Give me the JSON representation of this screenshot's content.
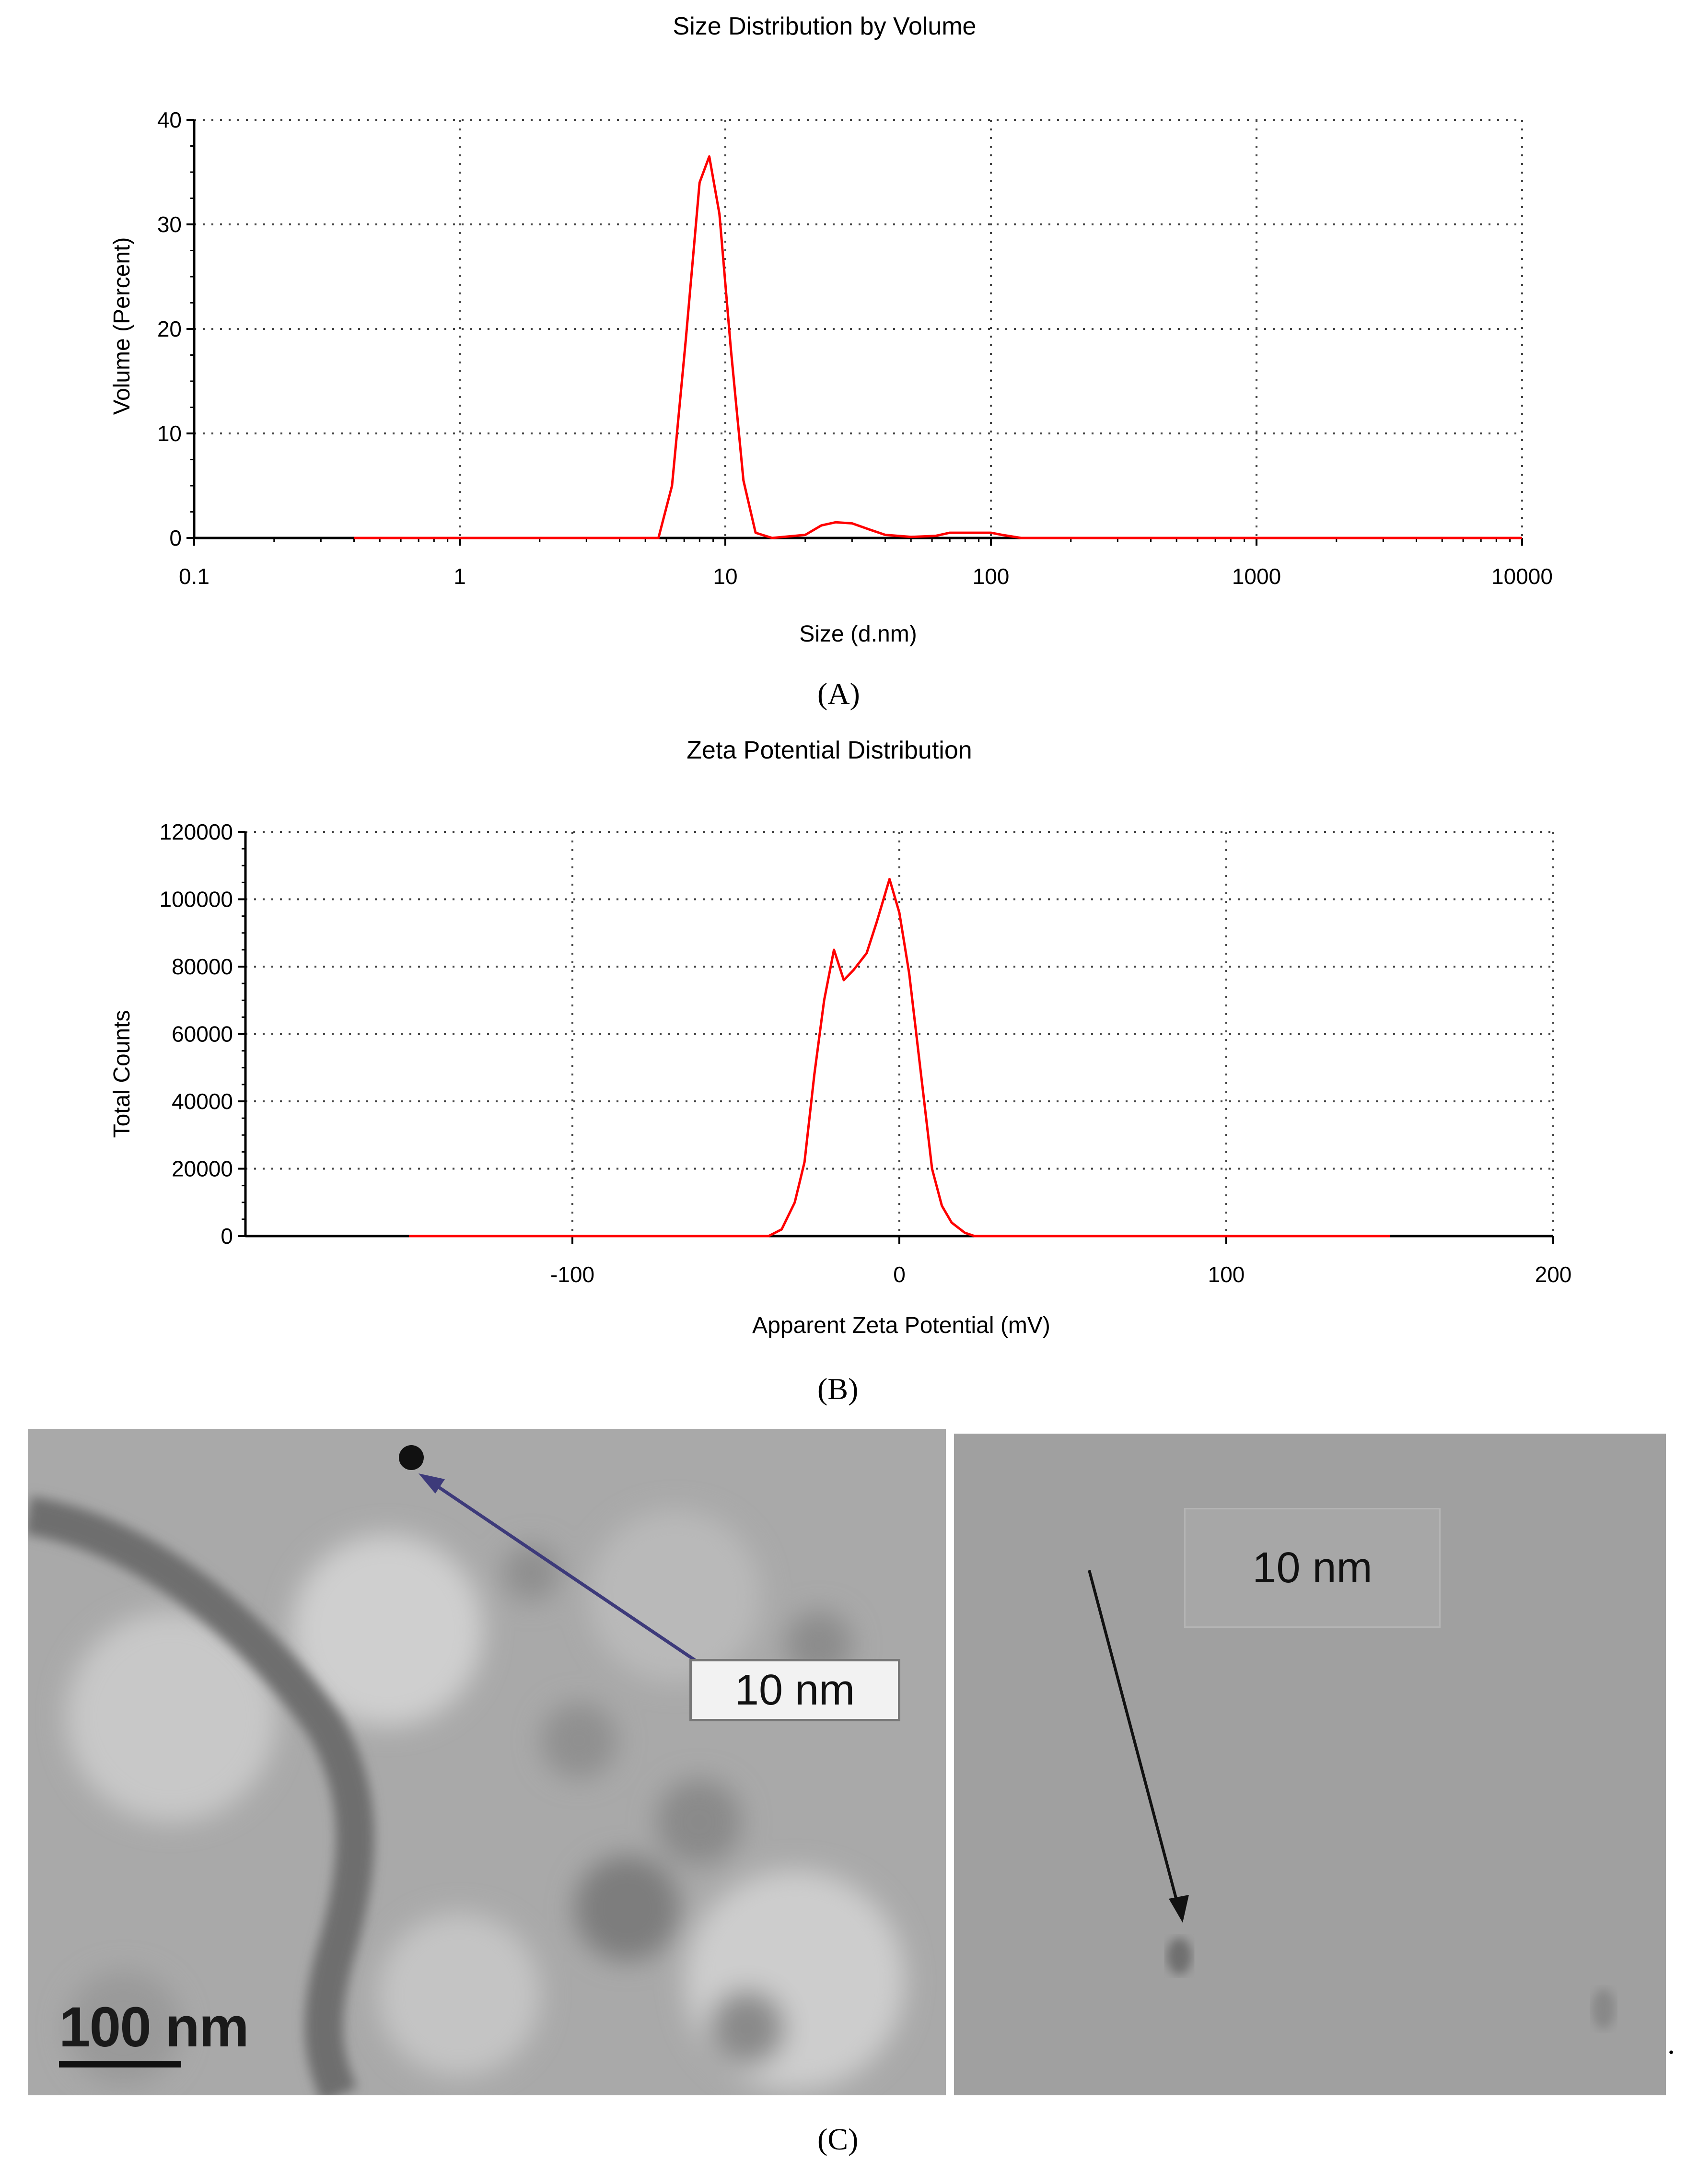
{
  "chart_data": [
    {
      "type": "line",
      "title": "Size Distribution by Volume",
      "xlabel": "Size (d.nm)",
      "ylabel": "Volume (Percent)",
      "x_scale": "log",
      "xlim": [
        0.1,
        10000
      ],
      "ylim": [
        0,
        40
      ],
      "x_ticks": [
        "0.1",
        "1",
        "10",
        "100",
        "1000",
        "10000"
      ],
      "y_ticks": [
        "0",
        "10",
        "20",
        "30",
        "40"
      ],
      "grid": true,
      "series": [
        {
          "color": "#ff0000",
          "x": [
            0.4,
            1,
            2,
            4,
            5.6,
            6.3,
            7.1,
            8,
            8.7,
            9.5,
            10.5,
            11.7,
            13,
            15,
            20,
            23,
            26,
            30,
            35,
            40,
            50,
            62,
            70,
            80,
            90,
            100,
            110,
            130,
            200,
            500,
            1000,
            5000,
            10000
          ],
          "y": [
            0,
            0,
            0,
            0,
            0,
            5,
            19,
            34,
            36.5,
            31,
            18,
            5.5,
            0.5,
            0,
            0.3,
            1.2,
            1.5,
            1.4,
            0.8,
            0.3,
            0.1,
            0.2,
            0.5,
            0.5,
            0.5,
            0.5,
            0.3,
            0,
            0,
            0,
            0,
            0,
            0
          ]
        }
      ]
    },
    {
      "type": "line",
      "title": "Zeta Potential Distribution",
      "xlabel": "Apparent Zeta Potential (mV)",
      "ylabel": "Total Counts",
      "xlim": [
        -200,
        200
      ],
      "ylim": [
        0,
        120000
      ],
      "x_ticks": [
        "-100",
        "0",
        "100",
        "200"
      ],
      "y_ticks": [
        "0",
        "20000",
        "40000",
        "60000",
        "80000",
        "100000",
        "120000"
      ],
      "grid": true,
      "series": [
        {
          "color": "#ff0000",
          "x": [
            -150,
            -100,
            -60,
            -40,
            -36,
            -32,
            -29,
            -26,
            -23,
            -20,
            -17,
            -14,
            -10,
            -7,
            -3,
            0,
            3,
            7,
            10,
            13,
            16,
            20,
            23,
            50,
            100,
            150
          ],
          "y": [
            0,
            0,
            0,
            0,
            2000,
            10000,
            22000,
            48000,
            70000,
            85000,
            76000,
            79000,
            84000,
            93000,
            106000,
            96000,
            78000,
            45000,
            20000,
            9000,
            4000,
            1000,
            0,
            0,
            0,
            0
          ]
        }
      ]
    }
  ],
  "captions": {
    "a": "(A)",
    "b": "(B)",
    "c": "(C)"
  },
  "micrographs": {
    "left": {
      "label": "10 nm",
      "scale_bar": "100 nm"
    },
    "right": {
      "label": "10 nm"
    }
  },
  "trailing_mark": "."
}
